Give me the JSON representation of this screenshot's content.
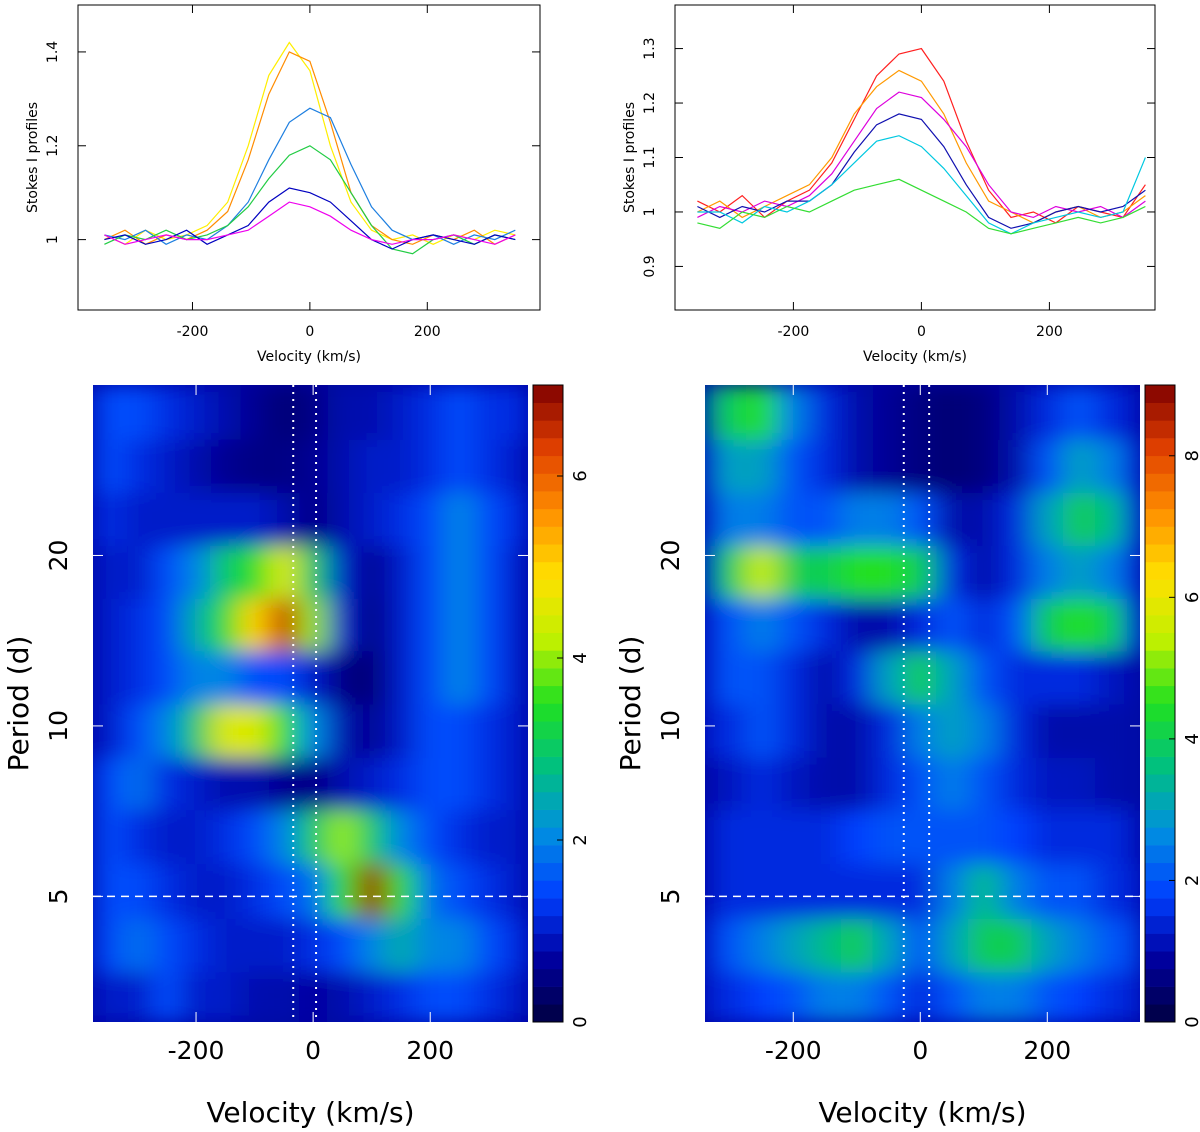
{
  "chart_data": [
    {
      "type": "line",
      "xlabel": "Velocity (km/s)",
      "ylabel": "Stokes I profiles",
      "xlim": [
        -395,
        392
      ],
      "ylim": [
        0.85,
        1.5
      ],
      "xticks": [
        -200,
        0,
        200
      ],
      "yticks": [
        1,
        1.2,
        1.4
      ],
      "x": [
        -350,
        -315,
        -280,
        -245,
        -210,
        -175,
        -140,
        -105,
        -70,
        -35,
        0,
        35,
        70,
        105,
        140,
        175,
        210,
        245,
        280,
        315,
        350
      ],
      "series": [
        {
          "color": "#ffee00",
          "values": [
            1.01,
            0.99,
            1.02,
            1.0,
            1.01,
            1.03,
            1.08,
            1.2,
            1.35,
            1.42,
            1.36,
            1.2,
            1.08,
            1.02,
            1.0,
            1.01,
            0.99,
            1.01,
            1.0,
            1.02,
            1.01
          ]
        },
        {
          "color": "#ff8c00",
          "values": [
            1.0,
            1.02,
            0.99,
            1.01,
            1.0,
            1.02,
            1.06,
            1.17,
            1.31,
            1.4,
            1.38,
            1.25,
            1.1,
            1.03,
            1.0,
            0.99,
            1.01,
            1.0,
            1.02,
            0.99,
            1.01
          ]
        },
        {
          "color": "#1e7fe0",
          "values": [
            1.01,
            1.0,
            1.02,
            0.99,
            1.01,
            1.0,
            1.03,
            1.08,
            1.17,
            1.25,
            1.28,
            1.26,
            1.16,
            1.07,
            1.02,
            1.0,
            1.01,
            0.99,
            1.01,
            1.0,
            1.02
          ]
        },
        {
          "color": "#22cc44",
          "values": [
            0.99,
            1.01,
            1.0,
            1.02,
            1.0,
            1.01,
            1.03,
            1.07,
            1.13,
            1.18,
            1.2,
            1.17,
            1.1,
            1.03,
            0.98,
            0.97,
            1.0,
            1.01,
            0.99,
            1.01,
            1.0
          ]
        },
        {
          "color": "#0000c0",
          "values": [
            1.0,
            1.01,
            0.99,
            1.0,
            1.02,
            0.99,
            1.01,
            1.03,
            1.08,
            1.11,
            1.1,
            1.08,
            1.04,
            1.0,
            0.98,
            1.0,
            1.01,
            1.0,
            0.99,
            1.01,
            1.0
          ]
        },
        {
          "color": "#ee00ee",
          "values": [
            1.01,
            0.99,
            1.0,
            1.01,
            1.0,
            1.0,
            1.01,
            1.02,
            1.05,
            1.08,
            1.07,
            1.05,
            1.02,
            1.0,
            0.99,
            1.0,
            1.0,
            1.01,
            1.0,
            0.99,
            1.01
          ]
        }
      ]
    },
    {
      "type": "line",
      "xlabel": "Velocity (km/s)",
      "ylabel": "Stokes I profiles",
      "xlim": [
        -385,
        365
      ],
      "ylim": [
        0.82,
        1.38
      ],
      "xticks": [
        -200,
        0,
        200
      ],
      "yticks": [
        0.9,
        1,
        1.1,
        1.2,
        1.3
      ],
      "x": [
        -350,
        -315,
        -280,
        -245,
        -210,
        -175,
        -140,
        -105,
        -70,
        -35,
        0,
        35,
        70,
        105,
        140,
        175,
        210,
        245,
        280,
        315,
        350
      ],
      "series": [
        {
          "color": "#ff2020",
          "values": [
            1.02,
            1.0,
            1.03,
            0.99,
            1.02,
            1.04,
            1.09,
            1.17,
            1.25,
            1.29,
            1.3,
            1.24,
            1.13,
            1.04,
            0.99,
            1.0,
            0.98,
            1.01,
            1.0,
            0.99,
            1.05
          ]
        },
        {
          "color": "#ff9900",
          "values": [
            1.0,
            1.02,
            0.99,
            1.01,
            1.03,
            1.05,
            1.1,
            1.18,
            1.23,
            1.26,
            1.24,
            1.18,
            1.09,
            1.02,
            1.0,
            0.98,
            1.0,
            1.01,
            0.99,
            1.0,
            1.03
          ]
        },
        {
          "color": "#dd00dd",
          "values": [
            0.99,
            1.01,
            1.0,
            1.02,
            1.01,
            1.03,
            1.07,
            1.13,
            1.19,
            1.22,
            1.21,
            1.17,
            1.12,
            1.05,
            1.0,
            0.99,
            1.01,
            1.0,
            1.01,
            0.99,
            1.02
          ]
        },
        {
          "color": "#1010b0",
          "values": [
            1.01,
            0.99,
            1.01,
            1.0,
            1.02,
            1.02,
            1.05,
            1.11,
            1.16,
            1.18,
            1.17,
            1.12,
            1.05,
            0.99,
            0.97,
            0.98,
            1.0,
            1.01,
            1.0,
            1.01,
            1.04
          ]
        },
        {
          "color": "#00c8e0",
          "values": [
            1.0,
            1.0,
            0.98,
            1.01,
            1.0,
            1.02,
            1.05,
            1.09,
            1.13,
            1.14,
            1.12,
            1.08,
            1.03,
            0.98,
            0.96,
            0.98,
            0.99,
            1.0,
            0.99,
            1.0,
            1.1
          ]
        },
        {
          "color": "#33dd33",
          "values": [
            0.98,
            0.97,
            1.0,
            0.99,
            1.01,
            1.0,
            1.02,
            1.04,
            1.05,
            1.06,
            1.04,
            1.02,
            1.0,
            0.97,
            0.96,
            0.97,
            0.98,
            0.99,
            0.98,
            0.99,
            1.01
          ]
        }
      ]
    },
    {
      "type": "heatmap",
      "xlabel": "Velocity (km/s)",
      "ylabel": "Period (d)",
      "xlim": [
        -376,
        367
      ],
      "ylim": [
        3,
        40
      ],
      "yscale": "log",
      "xticks": [
        -200,
        0,
        200
      ],
      "yticks": [
        5,
        10,
        20
      ],
      "zlim": [
        0,
        7
      ],
      "zticks": [
        0,
        2,
        4,
        6
      ],
      "vlines": [
        -34,
        5
      ],
      "hline": 5,
      "colormap": [
        "#000040",
        "#0000a0",
        "#0040ff",
        "#0090e0",
        "#00c080",
        "#20e020",
        "#c0f000",
        "#ffe000",
        "#ff9000",
        "#e04000",
        "#800000"
      ],
      "x": [
        -350,
        -300,
        -250,
        -200,
        -150,
        -100,
        -50,
        0,
        50,
        100,
        150,
        200,
        250,
        300,
        350
      ],
      "y": [
        3.3,
        4.1,
        5.1,
        6.4,
        7.9,
        9.8,
        12.2,
        15.1,
        18.7,
        23.2,
        28.8,
        35.7
      ],
      "z": [
        [
          1,
          1,
          1.5,
          1,
          1,
          0.8,
          0.8,
          0.7,
          0.8,
          1,
          1.2,
          1.5,
          1.5,
          1.2,
          1
        ],
        [
          1.5,
          1.8,
          1.5,
          1.2,
          1,
          1,
          1,
          1.2,
          1.5,
          2,
          2.5,
          2,
          2,
          1.5,
          1.2
        ],
        [
          1.5,
          1.5,
          1.2,
          1,
          1,
          1.2,
          1.5,
          1.8,
          3.5,
          6.8,
          3.5,
          1.8,
          1.5,
          1.2,
          1
        ],
        [
          1.5,
          1.2,
          1,
          1,
          1.2,
          1.5,
          2,
          3,
          4,
          3,
          2,
          1.5,
          1.2,
          1,
          1
        ],
        [
          1.5,
          1.8,
          1.2,
          1,
          0.8,
          0.8,
          0.6,
          0.5,
          0.8,
          1,
          1.2,
          1.5,
          1.5,
          1.2,
          1
        ],
        [
          1,
          1.5,
          2,
          3,
          4.5,
          4.5,
          3.5,
          2,
          0.8,
          0.6,
          1,
          1.5,
          1.5,
          1.2,
          1
        ],
        [
          1,
          1.2,
          1.5,
          2,
          2,
          1.5,
          1.5,
          1,
          0.5,
          0.4,
          1,
          1.5,
          2,
          1.5,
          1
        ],
        [
          1,
          1.2,
          1.5,
          2.5,
          3.5,
          5,
          6.5,
          4,
          1,
          0.5,
          1,
          1.5,
          2,
          1.5,
          1
        ],
        [
          1,
          1,
          1.5,
          2,
          3,
          3.5,
          4.5,
          3,
          1,
          0.6,
          1,
          1.5,
          2,
          1.5,
          1
        ],
        [
          1.2,
          1,
          1,
          1,
          1,
          1,
          0.8,
          0.5,
          0.8,
          1,
          1.2,
          1.5,
          2,
          1.5,
          1.2
        ],
        [
          1.5,
          1.2,
          1,
          0.8,
          0.6,
          0.5,
          0.5,
          0.6,
          0.8,
          1,
          1,
          1.2,
          1.5,
          1.2,
          1
        ],
        [
          1.5,
          1.5,
          1.2,
          1,
          0.8,
          0.6,
          0.4,
          0.5,
          0.8,
          0.8,
          1,
          1.2,
          1.5,
          1.2,
          1.2
        ]
      ]
    },
    {
      "type": "heatmap",
      "xlabel": "Velocity (km/s)",
      "ylabel": "Period (d)",
      "xlim": [
        -339,
        346
      ],
      "ylim": [
        3,
        40
      ],
      "yscale": "log",
      "xticks": [
        -200,
        0,
        200
      ],
      "yticks": [
        5,
        10,
        20
      ],
      "zlim": [
        0,
        9
      ],
      "zticks": [
        0,
        2,
        4,
        6,
        8
      ],
      "vlines": [
        -26,
        14
      ],
      "hline": 5,
      "colormap": [
        "#000040",
        "#0000a0",
        "#0040ff",
        "#0090e0",
        "#00c080",
        "#20e020",
        "#c0f000",
        "#ffe000",
        "#ff9000",
        "#e04000",
        "#800000"
      ],
      "x": [
        -350,
        -300,
        -250,
        -200,
        -150,
        -100,
        -50,
        0,
        50,
        100,
        150,
        200,
        250,
        300,
        350
      ],
      "y": [
        3.3,
        4.1,
        5.1,
        6.4,
        7.9,
        9.8,
        12.2,
        15.1,
        18.7,
        23.2,
        28.8,
        35.7
      ],
      "z": [
        [
          1.5,
          1.5,
          1.8,
          2,
          2.5,
          2.5,
          2,
          1.5,
          2,
          2.5,
          2.5,
          2,
          1.8,
          1.5,
          1.5
        ],
        [
          1.5,
          2,
          2.5,
          3,
          3.5,
          4,
          3,
          2,
          3,
          4,
          4,
          3,
          2.5,
          2,
          2
        ],
        [
          1.2,
          1.5,
          1.5,
          1.5,
          1.5,
          1.5,
          1.5,
          1.5,
          2.5,
          3.5,
          2.5,
          2,
          2,
          1.5,
          1.5
        ],
        [
          1.2,
          1.5,
          1.5,
          1.5,
          1.5,
          1.8,
          2,
          2,
          2,
          2,
          1.8,
          1.5,
          1.5,
          1.5,
          1.2
        ],
        [
          1,
          1.2,
          1.5,
          1.2,
          1,
          1,
          1.5,
          2,
          2.5,
          2,
          1.5,
          1.2,
          1.2,
          1,
          1
        ],
        [
          1.5,
          1.5,
          2,
          1.5,
          1,
          1,
          1.5,
          2.5,
          3,
          2.5,
          1.5,
          1,
          1,
          1,
          1
        ],
        [
          1.5,
          2,
          2,
          1.5,
          1,
          1.5,
          3,
          4,
          3,
          2,
          1.5,
          1.5,
          1.5,
          1.2,
          1
        ],
        [
          1.5,
          2,
          2.5,
          2,
          1.5,
          1,
          1,
          1.5,
          2,
          1.5,
          2,
          4,
          4.5,
          4,
          2
        ],
        [
          2,
          4,
          5.5,
          4,
          4,
          4.5,
          4.5,
          4,
          1.5,
          1,
          1.5,
          2.5,
          3,
          2.5,
          1.5
        ],
        [
          1.5,
          2.5,
          2.5,
          2,
          2,
          2.5,
          2.5,
          2,
          1,
          1,
          1.5,
          3,
          4,
          3.5,
          2
        ],
        [
          2,
          3,
          3,
          2,
          1.5,
          1,
          0.8,
          0.6,
          0.5,
          0.6,
          1,
          2,
          3,
          2.5,
          1.5
        ],
        [
          3,
          4,
          4.5,
          2.5,
          1.5,
          1,
          0.8,
          0.6,
          0.5,
          0.6,
          1,
          1.5,
          2,
          1.5,
          1.2
        ]
      ]
    }
  ]
}
